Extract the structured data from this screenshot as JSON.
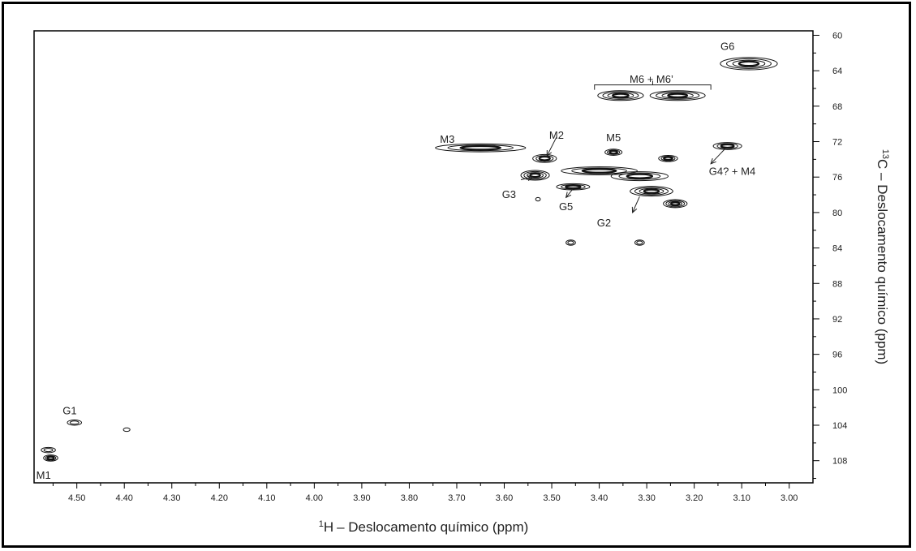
{
  "chart_data": {
    "type": "scatter",
    "subtype": "2d-nmr-contour",
    "xlabel": "– Deslocamento químico (ppm)",
    "xlabel_sup": "1",
    "xlabel_nucleus": "H",
    "ylabel": "C – Deslocamento químico (ppm)",
    "ylabel_sup": "13",
    "xlim": [
      4.59,
      2.95
    ],
    "ylim": [
      59.5,
      110.5
    ],
    "x_ticks": [
      "4.50",
      "4.40",
      "4.30",
      "4.20",
      "4.10",
      "4.00",
      "3.90",
      "3.80",
      "3.70",
      "3.60",
      "3.50",
      "3.40",
      "3.30",
      "3.20",
      "3.10",
      "3.00"
    ],
    "y_ticks": [
      "60",
      "64",
      "68",
      "72",
      "76",
      "80",
      "84",
      "88",
      "92",
      "96",
      "100",
      "104",
      "108"
    ],
    "grid": false,
    "y_axis_position": "right",
    "peaks": [
      {
        "x": 3.085,
        "y": 63.2,
        "rx": 0.06,
        "ry": 0.7,
        "levels": 4
      },
      {
        "x": 3.355,
        "y": 66.8,
        "rx": 0.048,
        "ry": 0.55,
        "levels": 4
      },
      {
        "x": 3.235,
        "y": 66.8,
        "rx": 0.058,
        "ry": 0.55,
        "levels": 4
      },
      {
        "x": 3.65,
        "y": 72.7,
        "rx": 0.095,
        "ry": 0.45,
        "levels": 3
      },
      {
        "x": 3.515,
        "y": 73.9,
        "rx": 0.025,
        "ry": 0.45,
        "levels": 3
      },
      {
        "x": 3.37,
        "y": 73.2,
        "rx": 0.018,
        "ry": 0.35,
        "levels": 3
      },
      {
        "x": 3.255,
        "y": 73.9,
        "rx": 0.02,
        "ry": 0.35,
        "levels": 3
      },
      {
        "x": 3.13,
        "y": 72.5,
        "rx": 0.03,
        "ry": 0.4,
        "levels": 3
      },
      {
        "x": 3.535,
        "y": 75.8,
        "rx": 0.03,
        "ry": 0.55,
        "levels": 4
      },
      {
        "x": 3.4,
        "y": 75.3,
        "rx": 0.08,
        "ry": 0.45,
        "levels": 3
      },
      {
        "x": 3.315,
        "y": 75.9,
        "rx": 0.06,
        "ry": 0.5,
        "levels": 3
      },
      {
        "x": 3.455,
        "y": 77.1,
        "rx": 0.035,
        "ry": 0.35,
        "levels": 3
      },
      {
        "x": 3.29,
        "y": 77.6,
        "rx": 0.045,
        "ry": 0.55,
        "levels": 4
      },
      {
        "x": 3.24,
        "y": 79.0,
        "rx": 0.025,
        "ry": 0.45,
        "levels": 4
      },
      {
        "x": 3.529,
        "y": 78.5,
        "rx": 0.005,
        "ry": 0.2,
        "levels": 1
      },
      {
        "x": 3.46,
        "y": 83.4,
        "rx": 0.01,
        "ry": 0.3,
        "levels": 2
      },
      {
        "x": 3.315,
        "y": 83.4,
        "rx": 0.01,
        "ry": 0.3,
        "levels": 2
      },
      {
        "x": 4.505,
        "y": 103.7,
        "rx": 0.015,
        "ry": 0.3,
        "levels": 2
      },
      {
        "x": 4.395,
        "y": 104.5,
        "rx": 0.007,
        "ry": 0.2,
        "levels": 1
      },
      {
        "x": 4.56,
        "y": 106.8,
        "rx": 0.015,
        "ry": 0.3,
        "levels": 2
      },
      {
        "x": 4.555,
        "y": 107.7,
        "rx": 0.015,
        "ry": 0.35,
        "levels": 3
      }
    ],
    "annotations": [
      {
        "text": "G6",
        "x": 3.13,
        "y": 61.2
      },
      {
        "text": "M6 + M6’",
        "x": 3.29,
        "y": 64.9
      },
      {
        "text": "M3",
        "x": 3.72,
        "y": 71.7
      },
      {
        "text": "M2",
        "x": 3.49,
        "y": 71.2
      },
      {
        "text": "M5",
        "x": 3.37,
        "y": 71.5
      },
      {
        "text": "G4? + M4",
        "x": 3.12,
        "y": 75.3
      },
      {
        "text": "G3",
        "x": 3.59,
        "y": 77.9
      },
      {
        "text": "G5",
        "x": 3.47,
        "y": 79.3
      },
      {
        "text": "G2",
        "x": 3.39,
        "y": 81.1
      },
      {
        "text": "G1",
        "x": 4.515,
        "y": 102.3
      },
      {
        "text": "M1",
        "x": 4.57,
        "y": 109.6
      }
    ],
    "arrows": [
      {
        "from": [
          3.49,
          71.5
        ],
        "to": [
          3.51,
          73.6
        ]
      },
      {
        "from": [
          3.565,
          76.3
        ],
        "to": [
          3.54,
          76.0
        ]
      },
      {
        "from": [
          3.455,
          77.3
        ],
        "to": [
          3.47,
          78.3
        ]
      },
      {
        "from": [
          3.315,
          78.2
        ],
        "to": [
          3.33,
          80.0
        ]
      },
      {
        "from": [
          3.135,
          72.8
        ],
        "to": [
          3.165,
          74.5
        ]
      }
    ],
    "bracket": {
      "x_from": 3.41,
      "x_to": 3.165,
      "y": 65.6
    }
  }
}
